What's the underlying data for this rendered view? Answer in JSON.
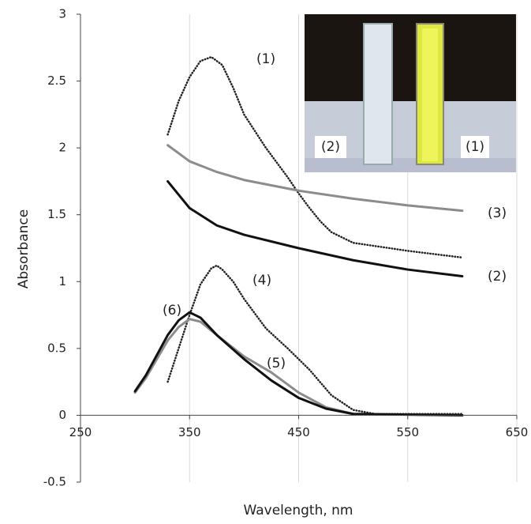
{
  "chart_data": {
    "type": "line",
    "x_label": "Wavelength, nm",
    "y_label": "Absorbance",
    "xlim": [
      250,
      650
    ],
    "xticks": [
      250,
      350,
      450,
      550,
      650
    ],
    "ylim": [
      -0.5,
      3
    ],
    "yticks": [
      -0.5,
      0,
      0.5,
      1,
      1.5,
      2,
      2.5,
      3
    ],
    "grid": "x",
    "inset_labels": [
      "(2)",
      "(1)"
    ],
    "series": [
      {
        "name": "(1)",
        "color": "#222222",
        "style": "dotted",
        "x": [
          330,
          340,
          350,
          360,
          370,
          380,
          390,
          400,
          420,
          440,
          450,
          460,
          470,
          480,
          500,
          550,
          600
        ],
        "values": [
          2.1,
          2.35,
          2.53,
          2.65,
          2.68,
          2.62,
          2.45,
          2.25,
          2.0,
          1.78,
          1.66,
          1.55,
          1.45,
          1.37,
          1.29,
          1.23,
          1.18
        ]
      },
      {
        "name": "(2)",
        "color": "#111111",
        "style": "solid",
        "x": [
          330,
          350,
          375,
          400,
          450,
          500,
          550,
          600
        ],
        "values": [
          1.75,
          1.55,
          1.42,
          1.35,
          1.25,
          1.16,
          1.09,
          1.04
        ]
      },
      {
        "name": "(3)",
        "color": "#8c8c8c",
        "style": "solid",
        "x": [
          330,
          350,
          375,
          400,
          450,
          500,
          550,
          600
        ],
        "values": [
          2.02,
          1.9,
          1.82,
          1.76,
          1.68,
          1.62,
          1.57,
          1.53
        ]
      },
      {
        "name": "(4)",
        "color": "#222222",
        "style": "dotted",
        "x": [
          330,
          340,
          350,
          360,
          370,
          375,
          380,
          390,
          400,
          420,
          440,
          460,
          480,
          500,
          520,
          600
        ],
        "values": [
          0.25,
          0.5,
          0.75,
          0.98,
          1.1,
          1.12,
          1.09,
          1.0,
          0.87,
          0.65,
          0.5,
          0.34,
          0.15,
          0.04,
          0.01,
          0.01
        ]
      },
      {
        "name": "(5)",
        "color": "#8c8c8c",
        "style": "solid",
        "x": [
          300,
          310,
          320,
          330,
          340,
          350,
          360,
          375,
          400,
          425,
          450,
          475,
          500,
          600
        ],
        "values": [
          0.17,
          0.28,
          0.42,
          0.56,
          0.66,
          0.72,
          0.7,
          0.6,
          0.44,
          0.32,
          0.17,
          0.06,
          0.01,
          0
        ]
      },
      {
        "name": "(6)",
        "color": "#111111",
        "style": "solid",
        "x": [
          300,
          310,
          320,
          330,
          340,
          350,
          360,
          375,
          400,
          425,
          450,
          475,
          500,
          600
        ],
        "values": [
          0.18,
          0.3,
          0.45,
          0.6,
          0.71,
          0.77,
          0.73,
          0.6,
          0.42,
          0.26,
          0.13,
          0.05,
          0.01,
          0
        ]
      }
    ]
  }
}
